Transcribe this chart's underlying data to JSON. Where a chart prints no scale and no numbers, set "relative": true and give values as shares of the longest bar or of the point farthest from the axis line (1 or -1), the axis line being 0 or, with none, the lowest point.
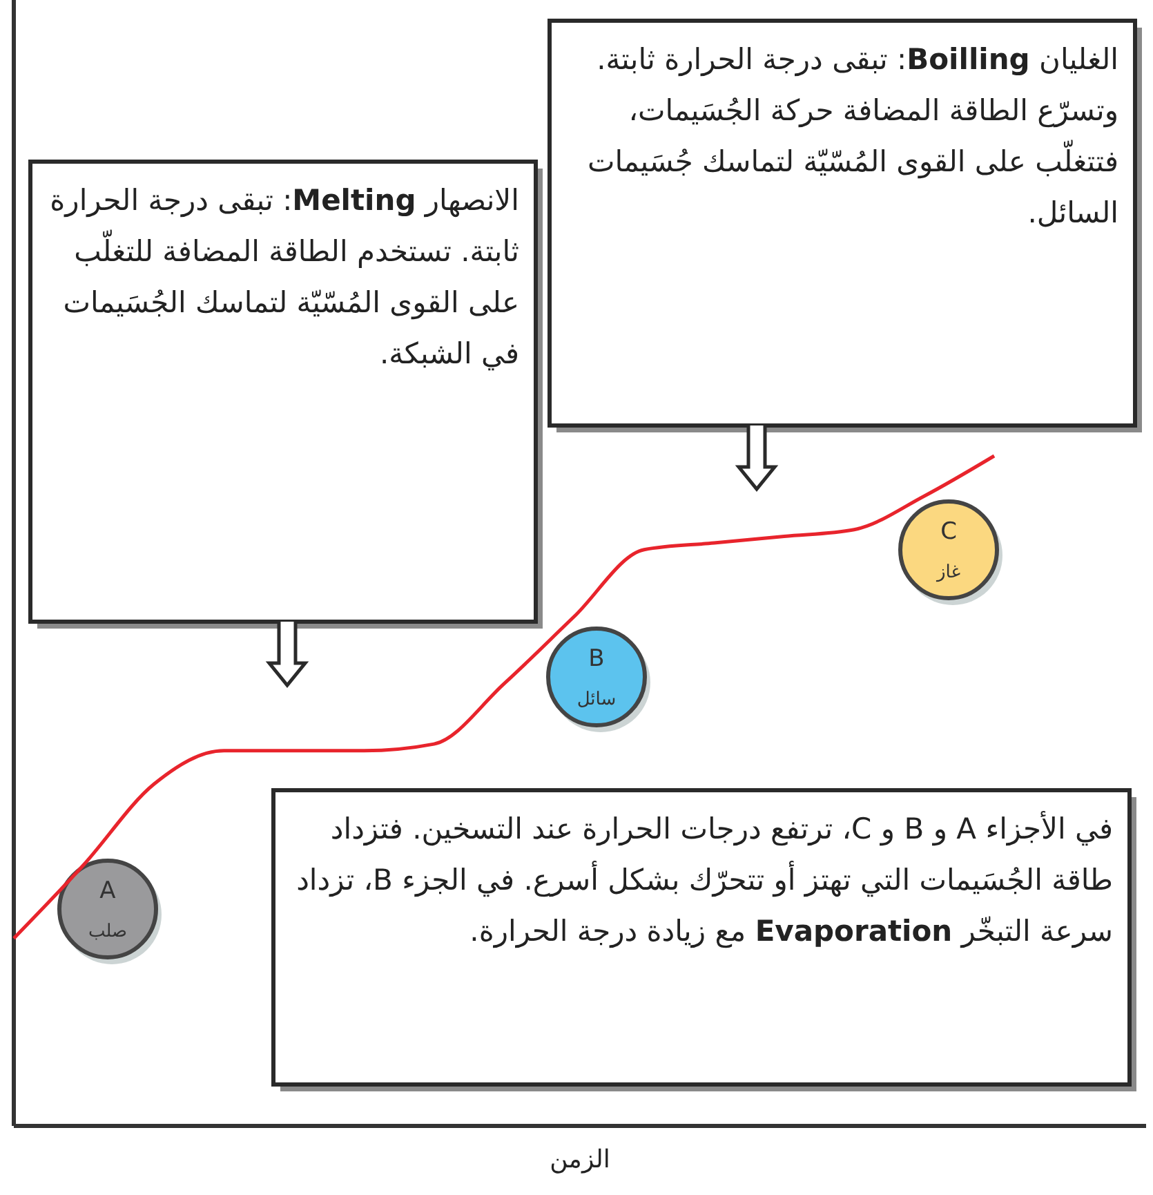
{
  "chart_data": {
    "type": "line",
    "relative": true,
    "xlabel": "الزمن",
    "categories": [
      null,
      null,
      null,
      null,
      null,
      null,
      null,
      null,
      null,
      null,
      null,
      null,
      null,
      null,
      null
    ],
    "series": [
      {
        "color": "#e8242c",
        "values": [
          0.28,
          0.39,
          0.51,
          0.56,
          0.56,
          0.56,
          0.57,
          0.66,
          0.76,
          0.86,
          0.87,
          0.88,
          0.89,
          0.94,
          1
        ]
      }
    ],
    "annotations": [
      "الغليان Boilling: تبقى درجة الحرارة ثابتة. وتسرّع الطاقة المضافة حركة الجُسَيمات، فتتغلّب على القوى المُسّيّة لتماسك جُسَيمات السائل.",
      "الانصهار Melting: تبقى درجة الحرارة ثابتة. تستخدم الطاقة المضافة للتغلّب على القوى المُسّيّة لتماسك الجُسَيمات في الشبكة.",
      "في الأجزاء A و B و C، ترتفع درجات الحرارة عند التسخين. فتزداد طاقة الجُسَيمات التي تهتز أو تتحرّك بشكل أسرع. في الجزء B، تزداد سرعة التبخّر Evaporation مع زيادة درجة الحرارة.",
      "A\nصلب",
      "B\nسائل",
      "C\nغاز"
    ],
    "line_style": "solid"
  }
}
